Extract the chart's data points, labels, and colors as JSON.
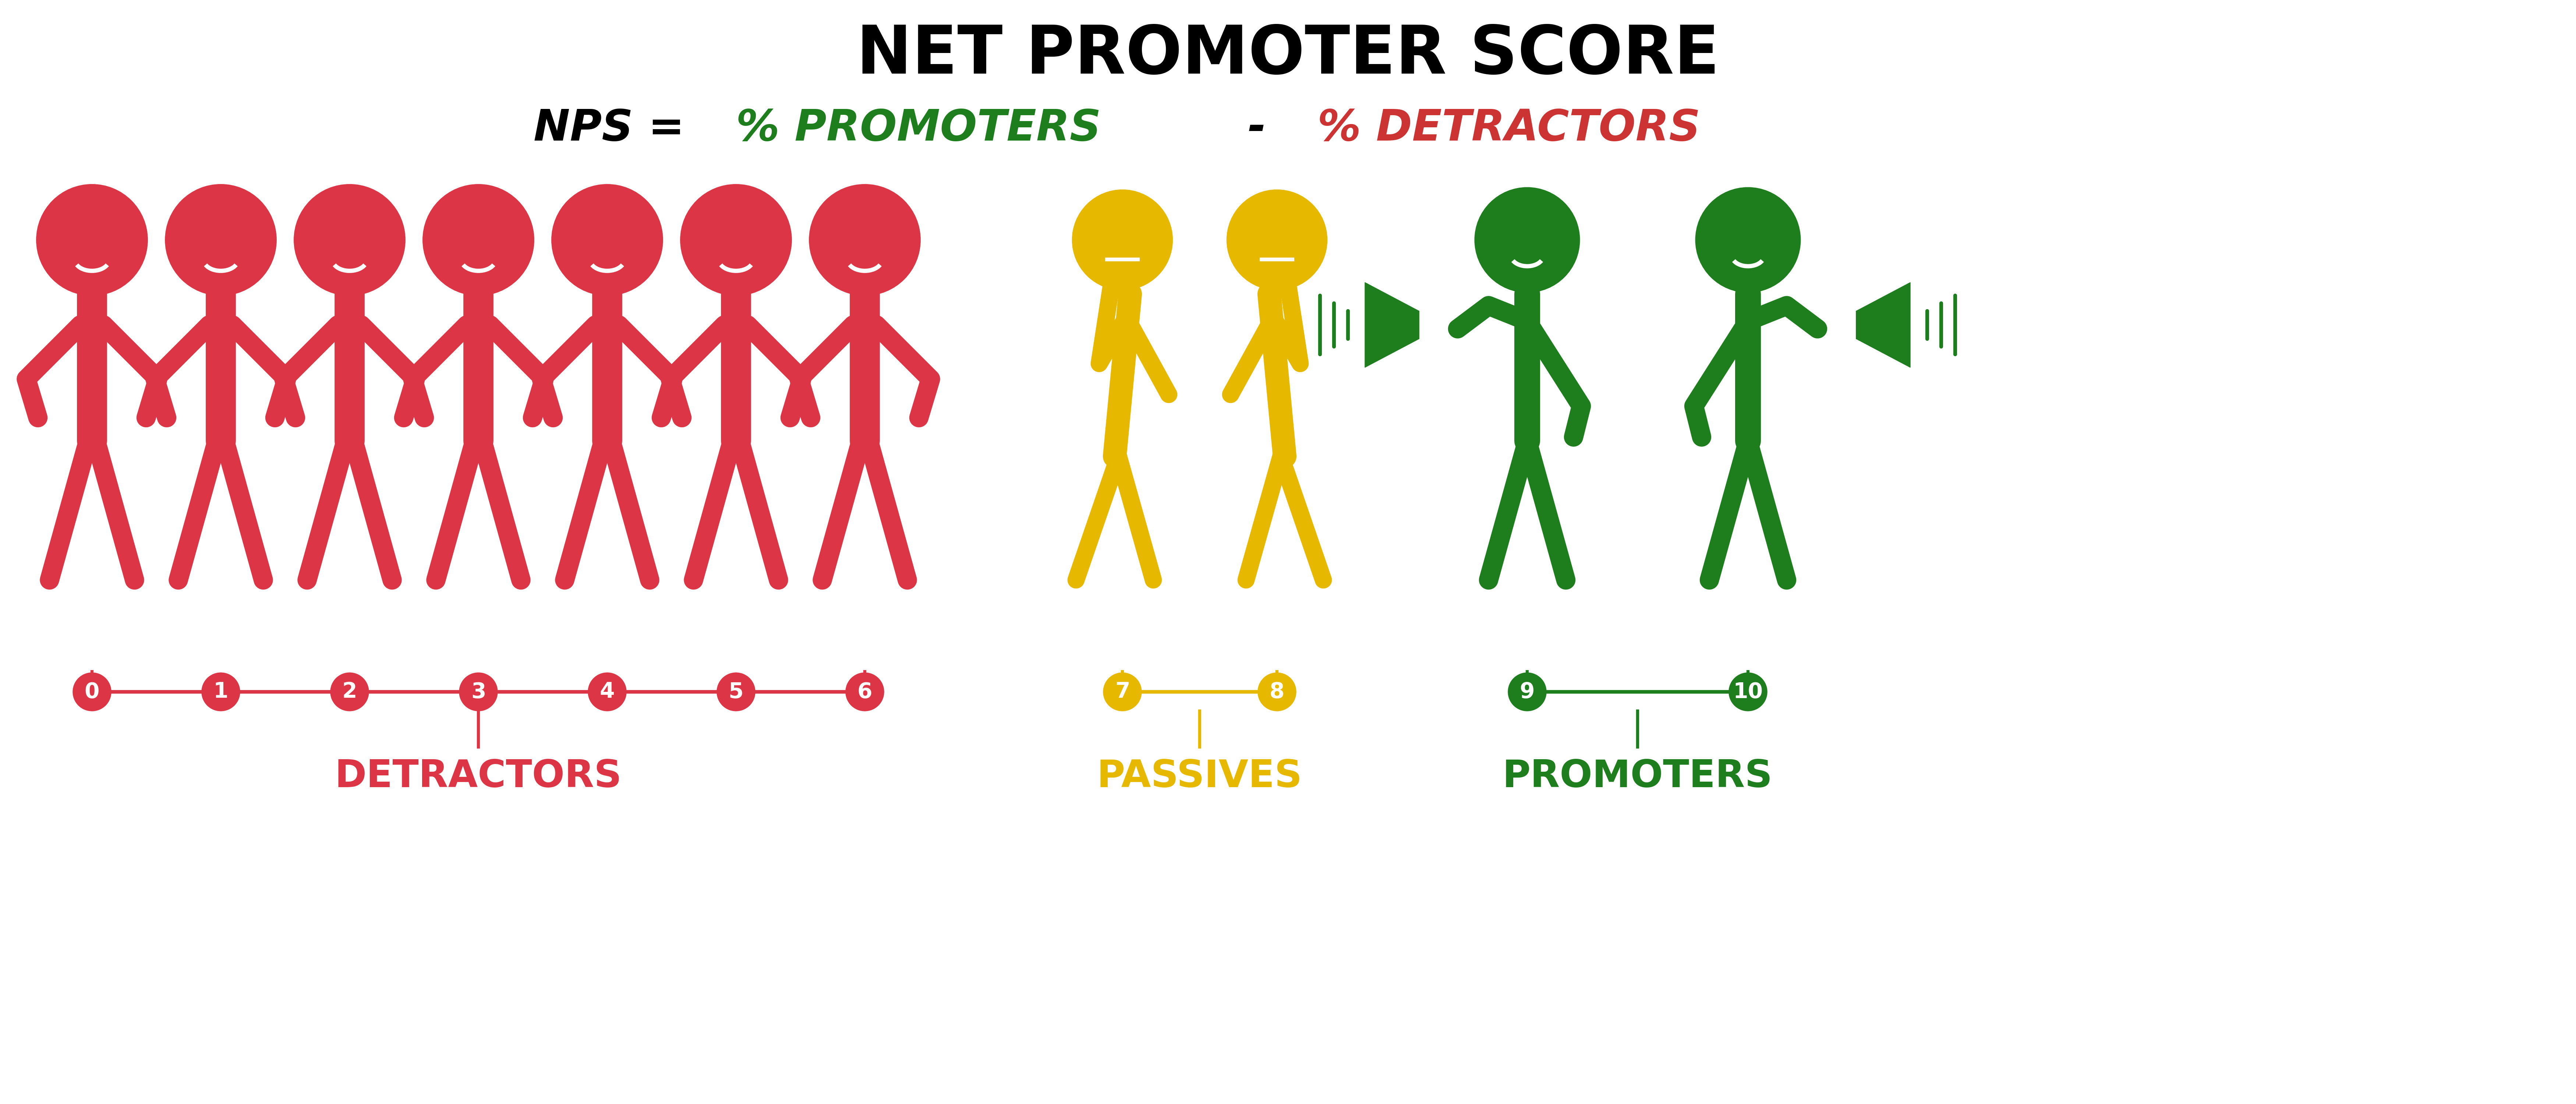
{
  "title": "NET PROMOTER SCORE",
  "title_color": "#000000",
  "formula_color_nps": "#000000",
  "formula_color_promoters": "#1e7e1e",
  "formula_color_dash": "#000000",
  "formula_color_detractors": "#cc3333",
  "red_color": "#dc3545",
  "yellow_color": "#e6b800",
  "green_color": "#1e7e1e",
  "white_color": "#ffffff",
  "background_color": "#ffffff",
  "detractor_label": "DETRACTORS",
  "passive_label": "PASSIVES",
  "promoter_label": "PROMOTERS",
  "detractor_numbers": [
    "0",
    "1",
    "2",
    "3",
    "4",
    "5",
    "6"
  ],
  "passive_numbers": [
    "7",
    "8"
  ],
  "promoter_numbers": [
    "9",
    "10"
  ]
}
